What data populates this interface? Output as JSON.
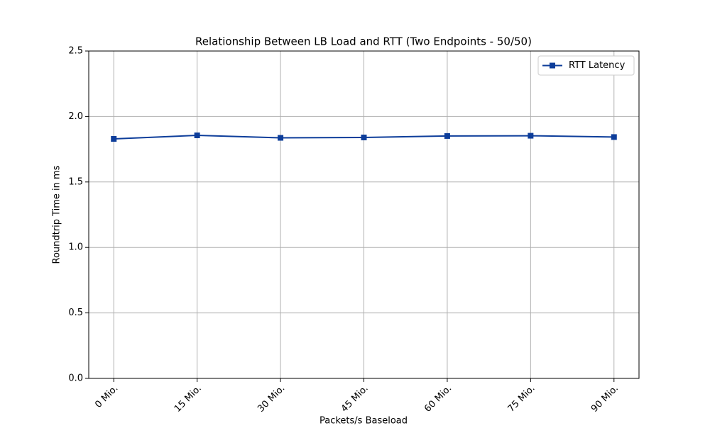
{
  "chart_data": {
    "type": "line",
    "title": "Relationship Between LB Load and RTT (Two Endpoints - 50/50)",
    "x_label": "Packets/s Baseload",
    "y_label": "Roundtrip Time in ms",
    "categories": [
      "0 Mio.",
      "15 Mio.",
      "30 Mio.",
      "45 Mio.",
      "60 Mio.",
      "75 Mio.",
      "90 Mio."
    ],
    "series": [
      {
        "name": "RTT Latency",
        "color": "#0d3d9a",
        "values": [
          1.829,
          1.856,
          1.837,
          1.84,
          1.851,
          1.853,
          1.843
        ]
      }
    ],
    "ylim": [
      0,
      2.5
    ],
    "yticks": [
      {
        "value": 0,
        "label": "0.0"
      },
      0.5,
      {
        "value": 1,
        "label": "1.0"
      },
      1.5,
      {
        "value": 2,
        "label": "2.0"
      },
      2.5
    ],
    "grid": true,
    "legend": "upper right"
  }
}
